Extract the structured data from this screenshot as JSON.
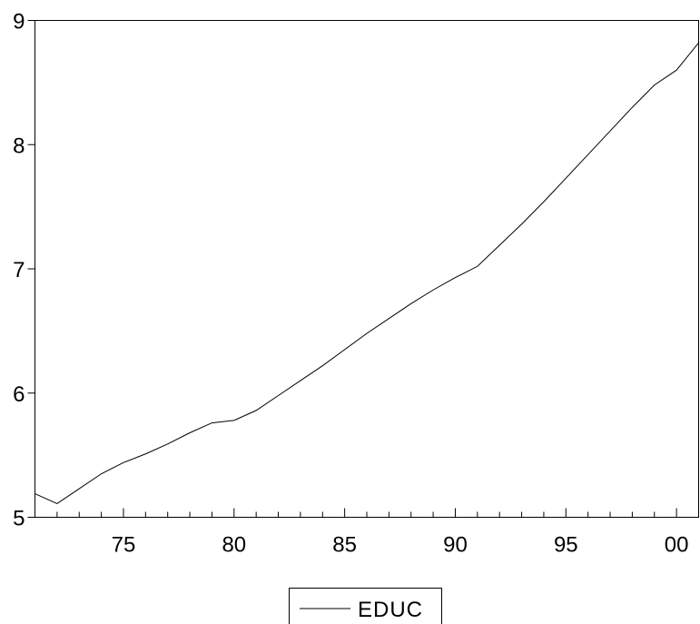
{
  "chart_data": {
    "type": "line",
    "title": "",
    "xlabel": "",
    "ylabel": "",
    "xlim": [
      1971,
      2001
    ],
    "ylim": [
      5,
      9
    ],
    "x_ticks": [
      {
        "value": 1975,
        "label": "75"
      },
      {
        "value": 1980,
        "label": "80"
      },
      {
        "value": 1985,
        "label": "85"
      },
      {
        "value": 1990,
        "label": "90"
      },
      {
        "value": 1995,
        "label": "95"
      },
      {
        "value": 2000,
        "label": "00"
      }
    ],
    "y_ticks": [
      {
        "value": 5,
        "label": "5"
      },
      {
        "value": 6,
        "label": "6"
      },
      {
        "value": 7,
        "label": "7"
      },
      {
        "value": 8,
        "label": "8"
      },
      {
        "value": 9,
        "label": "9"
      }
    ],
    "grid": false,
    "legend_position": "bottom-center",
    "series": [
      {
        "name": "EDUC",
        "color": "#000000",
        "x": [
          1971,
          1972,
          1973,
          1974,
          1975,
          1976,
          1977,
          1978,
          1979,
          1980,
          1981,
          1982,
          1983,
          1984,
          1985,
          1986,
          1987,
          1988,
          1989,
          1990,
          1991,
          1992,
          1993,
          1994,
          1995,
          1996,
          1997,
          1998,
          1999,
          2000,
          2001
        ],
        "values": [
          5.19,
          5.11,
          5.23,
          5.35,
          5.44,
          5.51,
          5.59,
          5.68,
          5.76,
          5.78,
          5.86,
          5.98,
          6.1,
          6.22,
          6.35,
          6.48,
          6.6,
          6.72,
          6.83,
          6.93,
          7.02,
          7.19,
          7.36,
          7.54,
          7.73,
          7.92,
          8.11,
          8.3,
          8.48,
          8.6,
          8.82
        ]
      }
    ]
  }
}
